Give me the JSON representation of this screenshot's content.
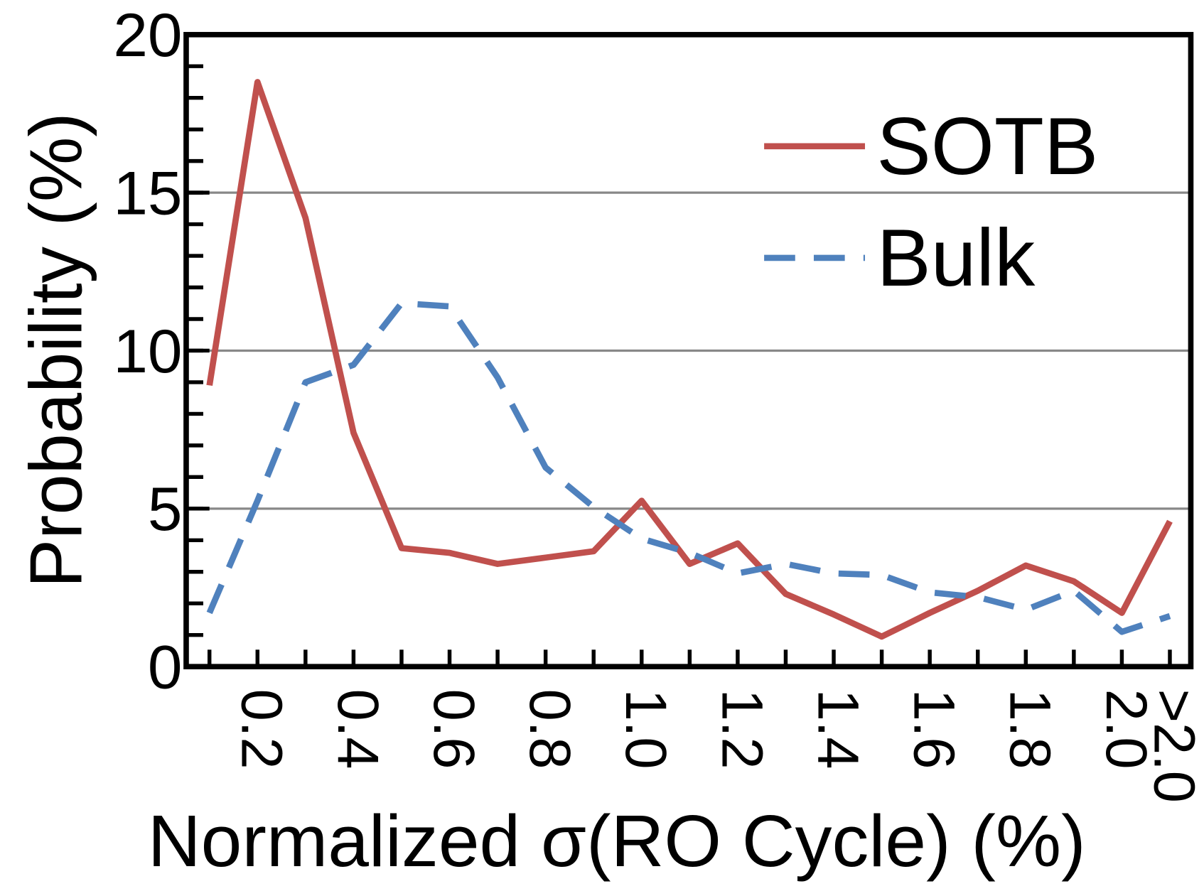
{
  "chart_data": {
    "type": "line",
    "xlabel": "Normalized σ(RO Cycle) (%)",
    "ylabel": "Probability (%)",
    "categories": [
      null,
      "0.2",
      null,
      "0.4",
      null,
      "0.6",
      null,
      "0.8",
      null,
      "1.0",
      null,
      "1.2",
      null,
      "1.4",
      null,
      "1.6",
      null,
      "1.8",
      null,
      "2.0",
      ">2.0"
    ],
    "series": [
      {
        "name": "SOTB",
        "color": "#c0504d",
        "dash": false,
        "values": [
          8.9,
          18.5,
          14.2,
          7.4,
          3.75,
          3.6,
          3.25,
          3.45,
          3.65,
          5.25,
          3.25,
          3.9,
          2.3,
          1.65,
          0.95,
          1.7,
          2.4,
          3.2,
          2.7,
          1.7,
          4.6
        ]
      },
      {
        "name": "Bulk",
        "color": "#4f81bd",
        "dash": true,
        "values": [
          1.7,
          5.25,
          9.0,
          9.55,
          11.5,
          11.4,
          9.15,
          6.3,
          5.05,
          4.05,
          3.6,
          2.95,
          3.25,
          2.95,
          2.9,
          2.35,
          2.2,
          1.8,
          2.4,
          1.1,
          1.6
        ]
      }
    ],
    "ylim": [
      0,
      20
    ],
    "yticks": [
      0,
      5,
      10,
      15,
      20
    ],
    "grid": true,
    "legend": "upper right"
  }
}
